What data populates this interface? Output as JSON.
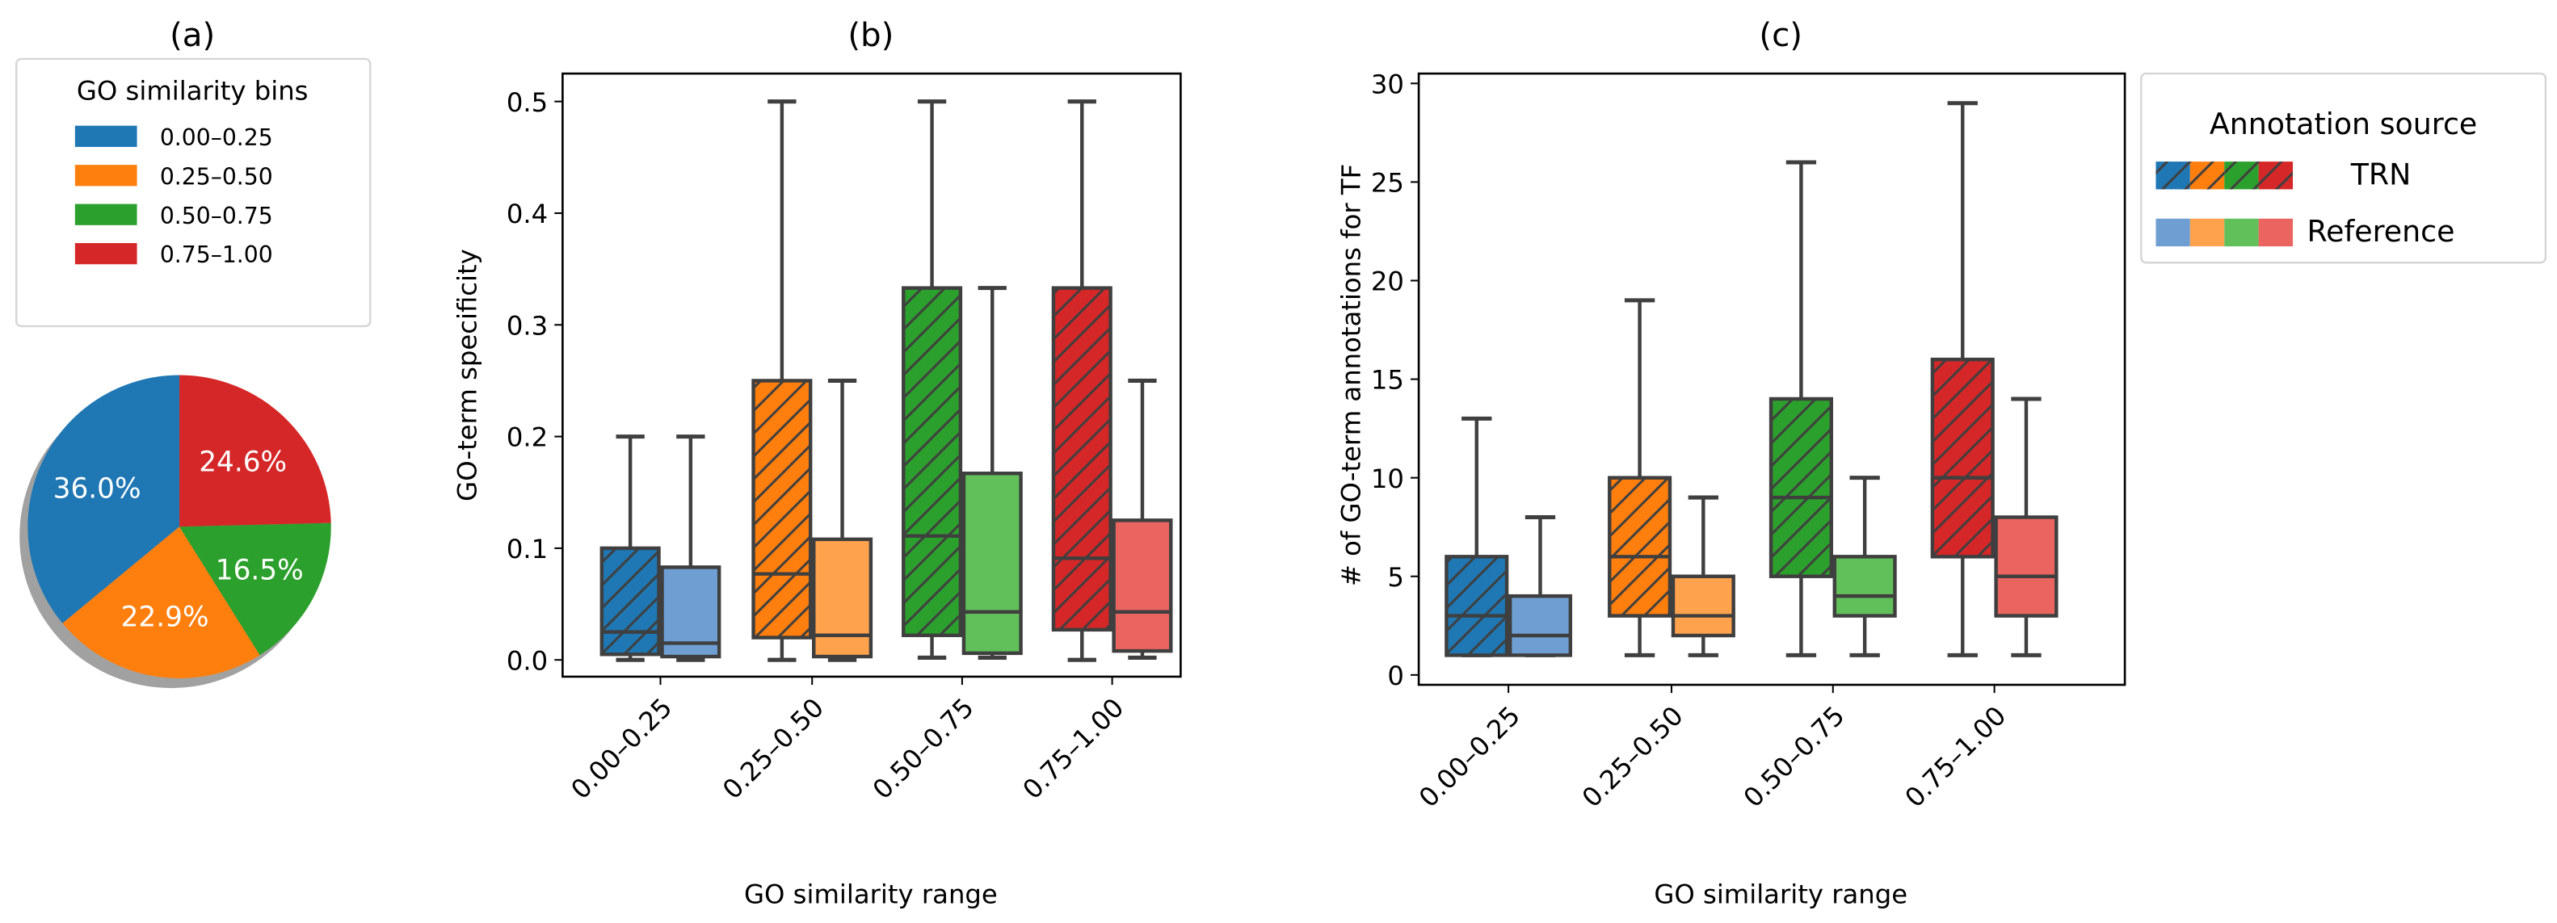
{
  "chart_data": [
    {
      "type": "pie",
      "panel_label": "(a)",
      "legend_title": "GO similarity bins",
      "legend_placement": "top",
      "categories": [
        "0.00–0.25",
        "0.25–0.50",
        "0.50–0.75",
        "0.75–1.00"
      ],
      "values": [
        36.0,
        22.9,
        16.5,
        24.6
      ],
      "labels": [
        "36.0%",
        "22.9%",
        "16.5%",
        "24.6%"
      ],
      "colors": [
        "#1f77b4",
        "#ff7f0e",
        "#2ca02c",
        "#d62728"
      ]
    },
    {
      "type": "box",
      "panel_label": "(b)",
      "xlabel": "GO similarity range",
      "ylabel": "GO-term specificity",
      "ylim": [
        -0.015,
        0.525
      ],
      "yticks": [
        "0.0",
        "0.1",
        "0.2",
        "0.3",
        "0.4",
        "0.5"
      ],
      "ytick_values": [
        0,
        0.1,
        0.2,
        0.3,
        0.4,
        0.5
      ],
      "categories": [
        "0.00–0.25",
        "0.25–0.50",
        "0.50–0.75",
        "0.75–1.00"
      ],
      "series": [
        {
          "name": "TRN",
          "stats": [
            [
              0,
              0.005,
              0.025,
              0.1,
              0.2
            ],
            [
              0,
              0.02,
              0.077,
              0.25,
              0.5
            ],
            [
              0.002,
              0.022,
              0.111,
              0.333,
              0.5
            ],
            [
              0,
              0.027,
              0.091,
              0.333,
              0.5
            ]
          ]
        },
        {
          "name": "Reference",
          "stats": [
            [
              0,
              0.003,
              0.015,
              0.083,
              0.2
            ],
            [
              0,
              0.003,
              0.022,
              0.108,
              0.25
            ],
            [
              0.002,
              0.006,
              0.043,
              0.167,
              0.333
            ],
            [
              0.002,
              0.008,
              0.043,
              0.125,
              0.25
            ]
          ]
        }
      ]
    },
    {
      "type": "box",
      "panel_label": "(c)",
      "xlabel": "GO similarity range",
      "ylabel": "# of GO-term annotations for TF",
      "ylim": [
        -0.5,
        30.5
      ],
      "yticks": [
        "0",
        "5",
        "10",
        "15",
        "20",
        "25",
        "30"
      ],
      "ytick_values": [
        0,
        5,
        10,
        15,
        20,
        25,
        30
      ],
      "categories": [
        "0.00–0.25",
        "0.25–0.50",
        "0.50–0.75",
        "0.75–1.00"
      ],
      "series": [
        {
          "name": "TRN",
          "stats": [
            [
              1,
              1,
              3,
              6,
              13
            ],
            [
              1,
              3,
              6,
              10,
              19
            ],
            [
              1,
              5,
              9,
              14,
              26
            ],
            [
              1,
              6,
              10,
              16,
              29
            ]
          ]
        },
        {
          "name": "Reference",
          "stats": [
            [
              1,
              1,
              2,
              4,
              8
            ],
            [
              1,
              2,
              3,
              5,
              9
            ],
            [
              1,
              3,
              4,
              6,
              10
            ],
            [
              1,
              3,
              5,
              8,
              14
            ]
          ]
        }
      ],
      "legend_title": "Annotation source",
      "legend_placement": "right"
    }
  ],
  "colors": {
    "trn": [
      "#1f77b4",
      "#ff7f0e",
      "#2ca02c",
      "#d62728"
    ],
    "reference": [
      "#6f9fd2",
      "#ffa24e",
      "#62c05a",
      "#ea6560"
    ],
    "edge": "#3f3f3f"
  }
}
